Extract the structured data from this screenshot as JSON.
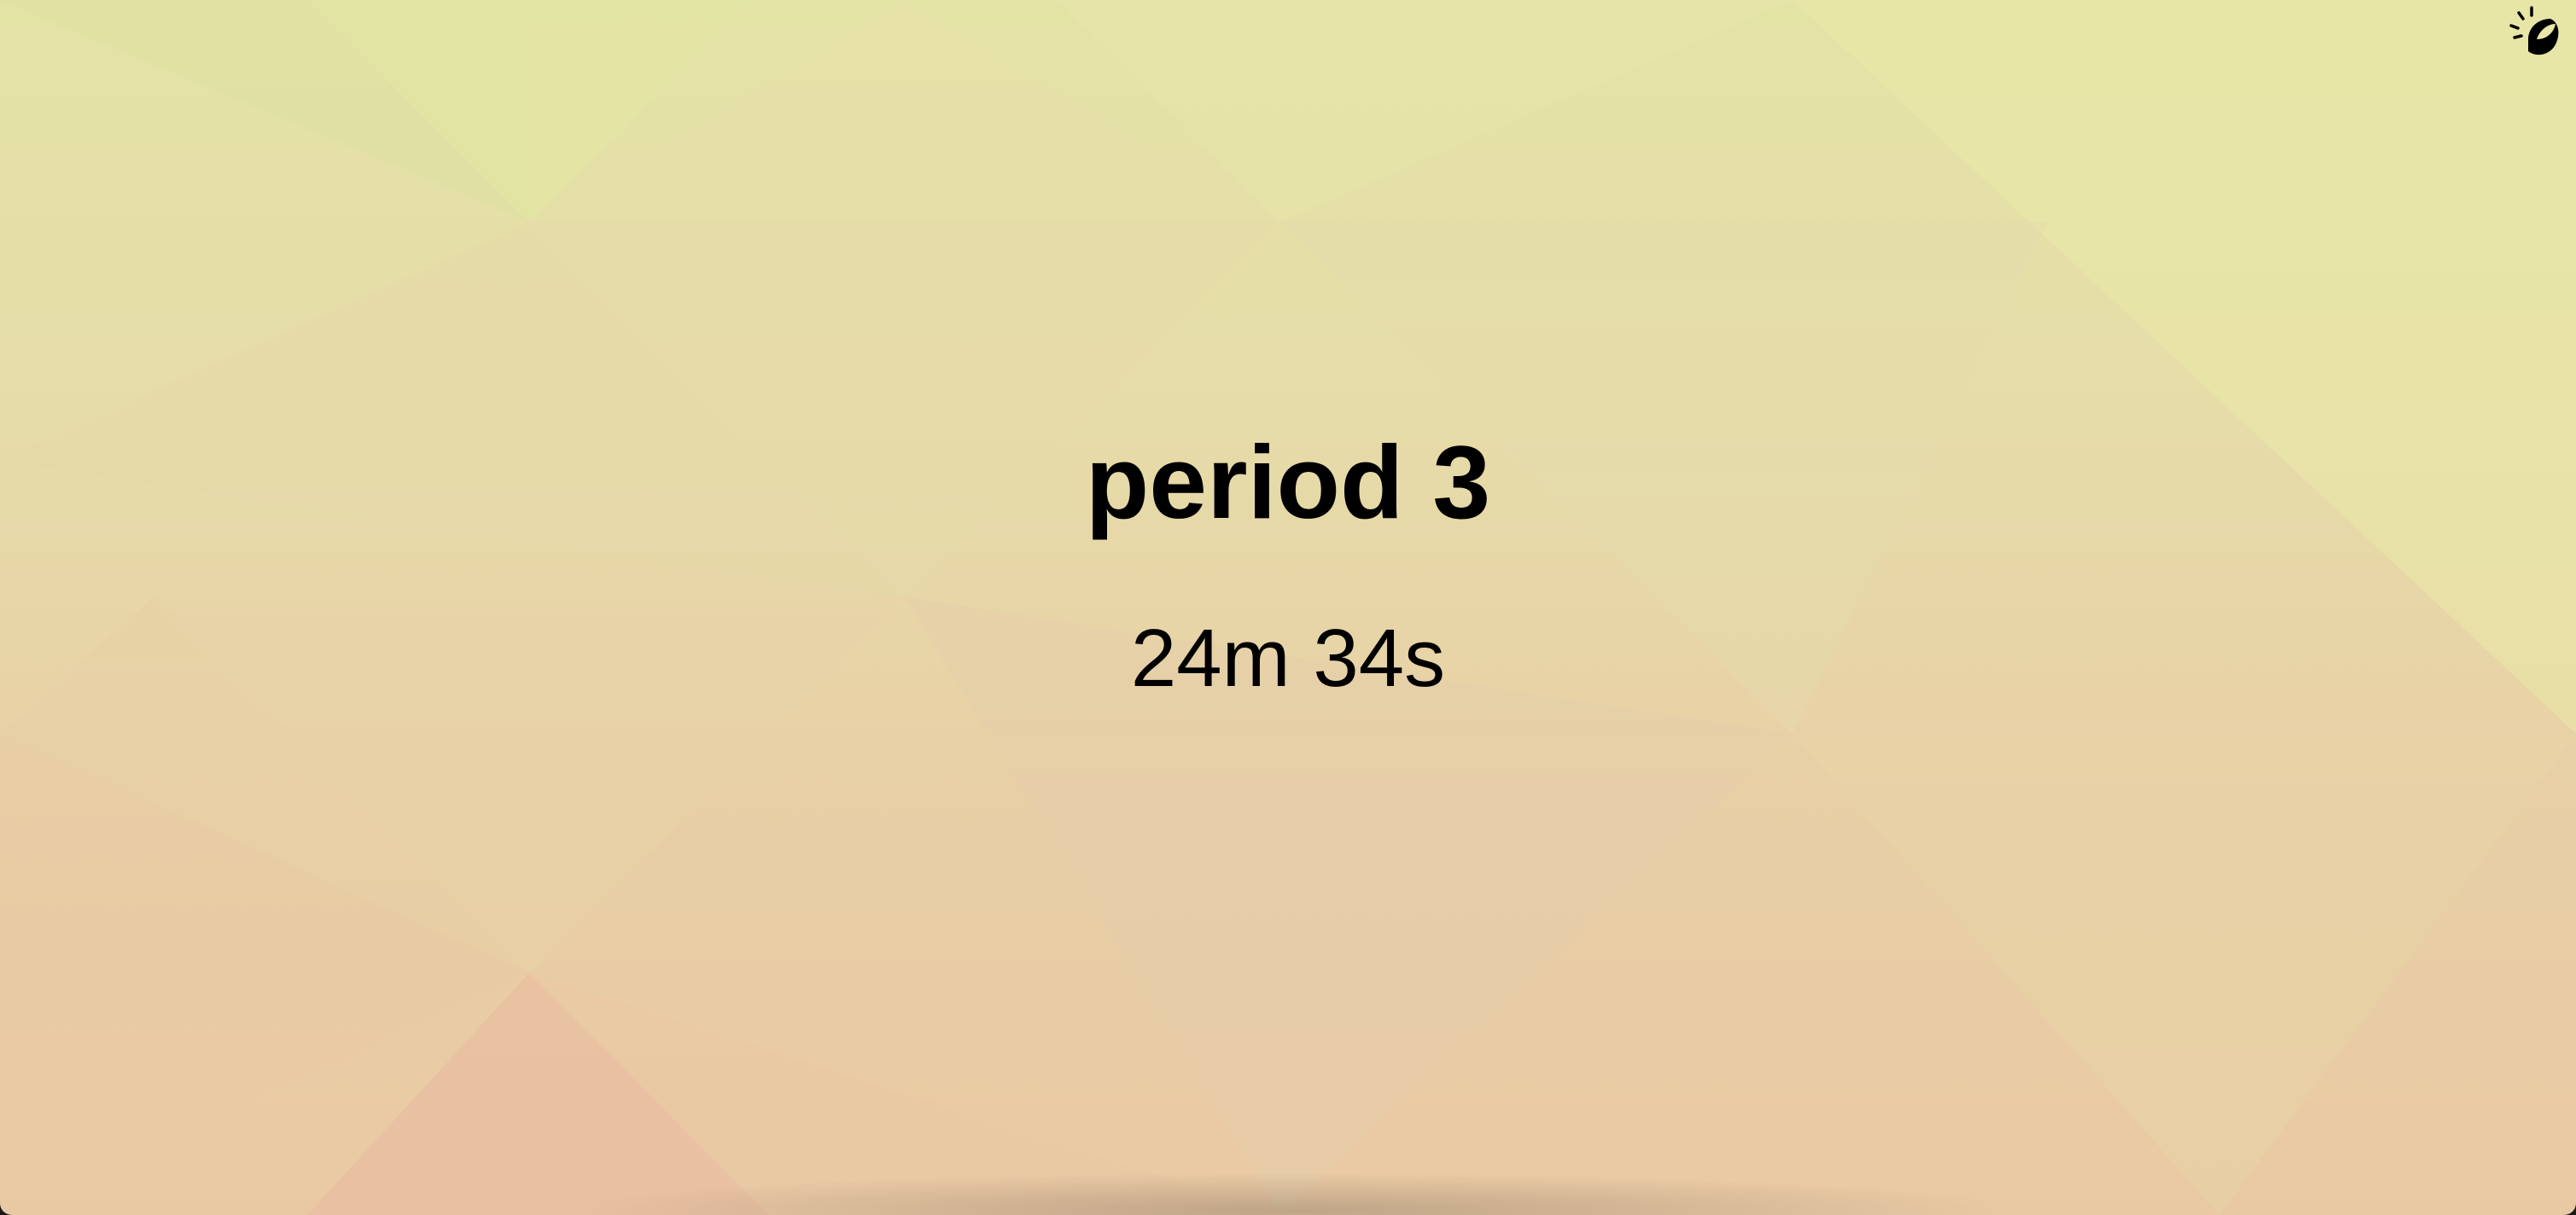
{
  "app": {
    "logo_icon": "sun-leaf-logo-icon"
  },
  "period": {
    "title": "period 3",
    "remaining": "24m 34s"
  },
  "colors": {
    "background_top": "#e4e3a6",
    "background_bottom": "#e9c9a4",
    "text": "#000000"
  }
}
